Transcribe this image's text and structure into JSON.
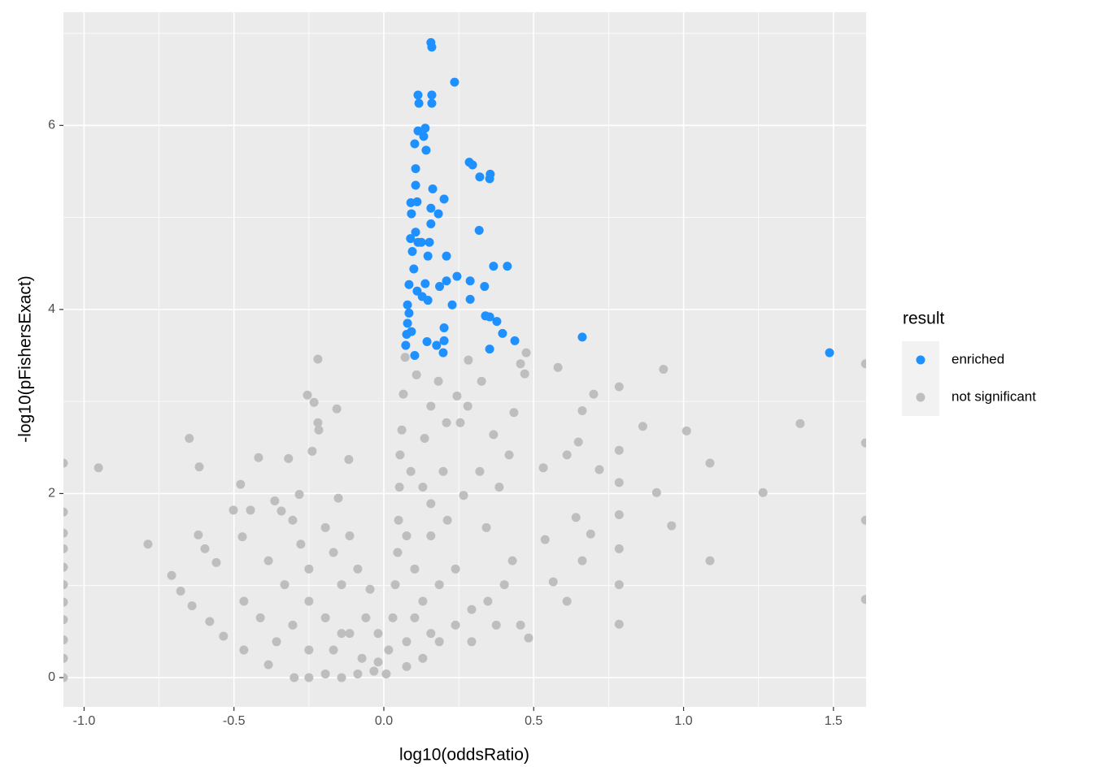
{
  "chart_data": {
    "type": "scatter",
    "x_label": "log10(oddsRatio)",
    "y_label": "-log10(pFishersExact)",
    "xlim": [
      -1.069,
      1.609
    ],
    "ylim": [
      -0.318,
      7.23
    ],
    "xticks": [
      {
        "value": -1.0,
        "label": "-1.0"
      },
      -0.5,
      {
        "value": 0.0,
        "label": "0.0"
      },
      0.5,
      {
        "value": 1.0,
        "label": "1.0"
      },
      1.5
    ],
    "yticks": [
      0,
      2,
      4,
      6
    ],
    "x_minor_ticks": [
      -0.75,
      -0.25,
      0.25,
      0.75,
      1.25
    ],
    "y_minor_ticks": [
      1,
      3,
      5,
      7
    ],
    "grid": true,
    "legend_title": "result",
    "legend_position": "right",
    "series": [
      {
        "name": "enriched",
        "color": "#1e90ff",
        "x": [
          0.157,
          0.16,
          0.236,
          0.114,
          0.16,
          0.117,
          0.16,
          0.138,
          0.114,
          0.133,
          0.103,
          0.141,
          0.285,
          0.296,
          0.106,
          0.32,
          0.355,
          0.353,
          0.106,
          0.163,
          0.201,
          0.09,
          0.111,
          0.157,
          0.182,
          0.092,
          0.157,
          0.318,
          0.106,
          0.089,
          0.152,
          0.114,
          0.125,
          0.095,
          0.147,
          0.209,
          0.366,
          0.412,
          0.1,
          0.244,
          0.209,
          0.288,
          0.336,
          0.186,
          0.084,
          0.138,
          0.111,
          0.128,
          0.288,
          0.228,
          0.079,
          0.147,
          0.084,
          0.339,
          0.353,
          0.377,
          0.201,
          0.079,
          0.092,
          0.396,
          0.662,
          0.437,
          0.201,
          0.076,
          0.144,
          0.176,
          0.073,
          0.353,
          0.198,
          0.103,
          1.487
        ],
        "values": [
          6.9,
          6.85,
          6.47,
          6.33,
          6.33,
          6.24,
          6.24,
          5.97,
          5.94,
          5.88,
          5.8,
          5.73,
          5.6,
          5.57,
          5.53,
          5.44,
          5.47,
          5.42,
          5.35,
          5.31,
          5.2,
          5.16,
          5.17,
          5.1,
          5.04,
          5.04,
          4.93,
          4.86,
          4.84,
          4.77,
          4.73,
          4.73,
          4.73,
          4.63,
          4.58,
          4.58,
          4.47,
          4.47,
          4.44,
          4.36,
          4.31,
          4.31,
          4.25,
          4.25,
          4.27,
          4.28,
          4.2,
          4.14,
          4.11,
          4.05,
          4.05,
          4.1,
          3.96,
          3.93,
          3.92,
          3.87,
          3.8,
          3.85,
          3.76,
          3.74,
          3.7,
          3.66,
          3.66,
          3.73,
          3.65,
          3.61,
          3.61,
          3.57,
          3.53,
          3.5,
          3.53
        ]
      },
      {
        "name": "not significant",
        "color": "#bebebe",
        "x": [
          1.607,
          1.607,
          1.607,
          1.607,
          1.389,
          1.265,
          1.088,
          1.088,
          1.01,
          0.96,
          0.933,
          0.91,
          0.864,
          0.785,
          0.785,
          0.785,
          0.785,
          0.785,
          0.785,
          0.785,
          0.7,
          0.719,
          0.69,
          0.662,
          0.662,
          0.649,
          0.641,
          0.611,
          0.611,
          0.581,
          0.565,
          0.538,
          0.532,
          0.475,
          0.483,
          0.47,
          0.456,
          0.434,
          0.418,
          0.385,
          0.366,
          0.342,
          0.326,
          0.282,
          0.28,
          0.255,
          0.244,
          0.209,
          0.182,
          0.157,
          0.136,
          0.109,
          0.071,
          0.065,
          0.06,
          0.054,
          0.052,
          0.049,
          0.046,
          0.038,
          0.03,
          0.016,
          0.008,
          0.076,
          0.13,
          0.185,
          0.239,
          0.293,
          0.347,
          0.402,
          0.429,
          0.239,
          0.185,
          0.13,
          0.103,
          0.157,
          0.212,
          0.266,
          0.32,
          0.13,
          0.076,
          0.103,
          0.076,
          0.157,
          0.293,
          0.375,
          0.456,
          0.157,
          0.198,
          0.09,
          -0.22,
          -0.255,
          -0.233,
          -0.157,
          -0.22,
          -0.217,
          -0.239,
          -0.318,
          -0.117,
          -0.418,
          -0.649,
          -0.616,
          -0.952,
          -0.478,
          -0.282,
          -0.152,
          -0.364,
          -0.502,
          -0.445,
          -0.342,
          -0.619,
          -0.472,
          -0.787,
          -0.597,
          -0.559,
          -0.708,
          -0.678,
          -0.64,
          -0.581,
          -0.535,
          -0.467,
          -0.385,
          -0.299,
          -0.25,
          -0.195,
          -0.141,
          -0.087,
          -0.033,
          -0.168,
          -0.114,
          -0.06,
          -0.195,
          -0.25,
          -0.304,
          -0.358,
          -0.412,
          -0.467,
          -0.331,
          -0.25,
          -0.168,
          -0.114,
          -0.195,
          -0.277,
          -0.385,
          -0.304,
          -0.087,
          -0.046,
          -0.141,
          -0.019,
          -0.141,
          -0.25,
          -0.073,
          -0.019,
          -1.069,
          -1.069,
          -1.069,
          -1.069,
          -1.069,
          -1.069,
          -1.069,
          -1.069,
          -1.069,
          -1.069,
          -1.069
        ],
        "values": [
          3.41,
          2.55,
          1.71,
          0.85,
          2.76,
          2.01,
          2.33,
          1.27,
          2.68,
          1.65,
          3.35,
          2.01,
          2.73,
          3.16,
          2.47,
          2.12,
          1.77,
          1.4,
          1.01,
          0.58,
          3.08,
          2.26,
          1.56,
          1.27,
          2.9,
          2.56,
          1.74,
          0.83,
          2.42,
          3.37,
          1.04,
          1.5,
          2.28,
          3.53,
          0.43,
          3.3,
          3.41,
          2.88,
          2.42,
          2.07,
          2.64,
          1.63,
          3.22,
          3.45,
          2.95,
          2.77,
          3.06,
          2.77,
          3.22,
          2.95,
          2.6,
          3.29,
          3.48,
          3.08,
          2.69,
          2.42,
          2.07,
          1.71,
          1.36,
          1.01,
          0.65,
          0.3,
          0.04,
          0.12,
          0.21,
          0.39,
          0.57,
          0.74,
          0.83,
          1.01,
          1.27,
          1.18,
          1.01,
          0.83,
          1.18,
          1.54,
          1.71,
          1.98,
          2.24,
          2.07,
          1.54,
          0.65,
          0.39,
          0.48,
          0.39,
          0.57,
          0.57,
          1.89,
          2.24,
          2.24,
          3.46,
          3.07,
          2.99,
          2.92,
          2.77,
          2.69,
          2.46,
          2.38,
          2.37,
          2.39,
          2.6,
          2.29,
          2.28,
          2.1,
          1.99,
          1.95,
          1.92,
          1.82,
          1.82,
          1.81,
          1.55,
          1.53,
          1.45,
          1.4,
          1.25,
          1.11,
          0.94,
          0.78,
          0.61,
          0.45,
          0.3,
          0.14,
          0.0,
          0.0,
          0.04,
          0.0,
          0.04,
          0.07,
          0.3,
          0.48,
          0.65,
          0.65,
          0.83,
          0.57,
          0.39,
          0.65,
          0.83,
          1.01,
          1.18,
          1.36,
          1.54,
          1.63,
          1.45,
          1.27,
          1.71,
          1.18,
          0.96,
          1.01,
          0.48,
          0.48,
          0.3,
          0.21,
          0.17,
          2.33,
          1.8,
          1.57,
          1.4,
          1.2,
          1.01,
          0.82,
          0.63,
          0.41,
          0.21,
          0.0
        ]
      }
    ]
  }
}
